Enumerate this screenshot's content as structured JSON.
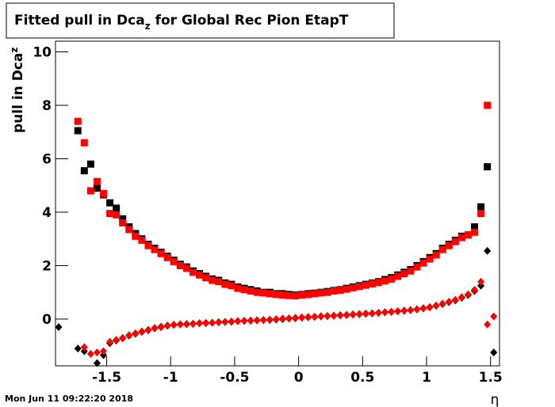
{
  "chart_data": {
    "type": "scatter",
    "title": {
      "text": "Fitted pull in Dca",
      "sub": "z",
      "rest": " for Global Rec Pion EtapT"
    },
    "y_label": {
      "text": "pull in Dca",
      "sub": "z"
    },
    "x_label": "η",
    "footer": "Mon Jun 11 09:22:20 2018",
    "xlim": [
      -1.9,
      1.57
    ],
    "ylim": [
      -1.75,
      10.4
    ],
    "xticks": [
      -1.5,
      -1,
      -0.5,
      0,
      0.5,
      1,
      1.5
    ],
    "yticks": [
      0,
      2,
      4,
      6,
      8,
      10
    ],
    "series": [
      {
        "color": "#000000",
        "marker": "square",
        "x": [
          -1.725,
          -1.675,
          -1.625,
          -1.575,
          -1.525,
          -1.475,
          -1.425,
          -1.375,
          -1.325,
          -1.275,
          -1.225,
          -1.175,
          -1.125,
          -1.075,
          -1.025,
          -0.975,
          -0.925,
          -0.875,
          -0.825,
          -0.775,
          -0.725,
          -0.675,
          -0.625,
          -0.575,
          -0.525,
          -0.475,
          -0.425,
          -0.375,
          -0.325,
          -0.275,
          -0.225,
          -0.175,
          -0.125,
          -0.075,
          -0.025,
          0.025,
          0.075,
          0.125,
          0.175,
          0.225,
          0.275,
          0.325,
          0.375,
          0.425,
          0.475,
          0.525,
          0.575,
          0.625,
          0.675,
          0.725,
          0.775,
          0.825,
          0.875,
          0.925,
          0.975,
          1.025,
          1.075,
          1.125,
          1.175,
          1.225,
          1.275,
          1.325,
          1.375,
          1.425,
          1.475
        ],
        "values": [
          7.05,
          5.55,
          5.8,
          4.9,
          4.65,
          4.35,
          4.15,
          3.75,
          3.45,
          3.2,
          3.0,
          2.8,
          2.65,
          2.5,
          2.35,
          2.2,
          2.05,
          1.95,
          1.8,
          1.7,
          1.6,
          1.5,
          1.45,
          1.35,
          1.3,
          1.2,
          1.15,
          1.1,
          1.05,
          1.0,
          1.0,
          0.95,
          0.95,
          0.92,
          0.9,
          0.92,
          0.95,
          0.97,
          1.0,
          1.03,
          1.07,
          1.1,
          1.15,
          1.2,
          1.25,
          1.3,
          1.35,
          1.4,
          1.48,
          1.55,
          1.65,
          1.75,
          1.85,
          2.0,
          2.15,
          2.3,
          2.45,
          2.65,
          2.8,
          2.95,
          3.1,
          3.15,
          3.45,
          4.2,
          5.7
        ]
      },
      {
        "color": "#ff0000",
        "marker": "square",
        "x": [
          -1.725,
          -1.675,
          -1.625,
          -1.575,
          -1.525,
          -1.475,
          -1.425,
          -1.375,
          -1.325,
          -1.275,
          -1.225,
          -1.175,
          -1.125,
          -1.075,
          -1.025,
          -0.975,
          -0.925,
          -0.875,
          -0.825,
          -0.775,
          -0.725,
          -0.675,
          -0.625,
          -0.575,
          -0.525,
          -0.475,
          -0.425,
          -0.375,
          -0.325,
          -0.275,
          -0.225,
          -0.175,
          -0.125,
          -0.075,
          -0.025,
          0.025,
          0.075,
          0.125,
          0.175,
          0.225,
          0.275,
          0.325,
          0.375,
          0.425,
          0.475,
          0.525,
          0.575,
          0.625,
          0.675,
          0.725,
          0.775,
          0.825,
          0.875,
          0.925,
          0.975,
          1.025,
          1.075,
          1.125,
          1.175,
          1.225,
          1.275,
          1.325,
          1.375,
          1.425,
          1.475
        ],
        "values": [
          7.4,
          6.6,
          4.8,
          5.15,
          4.7,
          3.95,
          3.9,
          3.6,
          3.35,
          3.1,
          2.95,
          2.75,
          2.6,
          2.45,
          2.3,
          2.15,
          2.0,
          1.9,
          1.75,
          1.65,
          1.55,
          1.45,
          1.4,
          1.3,
          1.25,
          1.15,
          1.1,
          1.05,
          1.0,
          0.98,
          0.95,
          0.92,
          0.9,
          0.88,
          0.87,
          0.9,
          0.92,
          0.95,
          0.98,
          1.0,
          1.05,
          1.08,
          1.12,
          1.17,
          1.22,
          1.27,
          1.32,
          1.37,
          1.43,
          1.5,
          1.6,
          1.7,
          1.8,
          1.95,
          2.1,
          2.25,
          2.4,
          2.6,
          2.75,
          2.9,
          3.05,
          3.15,
          3.25,
          3.95,
          8.0
        ]
      },
      {
        "color": "#000000",
        "marker": "diamond",
        "x": [
          -1.875,
          -1.725,
          -1.675,
          -1.575,
          -1.525,
          -1.475,
          -1.425,
          -1.375,
          -1.325,
          -1.275,
          -1.225,
          -1.175,
          -1.125,
          -1.075,
          -1.025,
          -0.975,
          -0.925,
          -0.875,
          -0.825,
          -0.775,
          -0.725,
          -0.675,
          -0.625,
          -0.575,
          -0.525,
          -0.475,
          -0.425,
          -0.375,
          -0.325,
          -0.275,
          -0.225,
          -0.175,
          -0.125,
          -0.075,
          -0.025,
          0.025,
          0.075,
          0.125,
          0.175,
          0.225,
          0.275,
          0.325,
          0.375,
          0.425,
          0.475,
          0.525,
          0.575,
          0.625,
          0.675,
          0.725,
          0.775,
          0.825,
          0.875,
          0.925,
          0.975,
          1.025,
          1.075,
          1.125,
          1.175,
          1.225,
          1.275,
          1.325,
          1.375,
          1.425,
          1.475,
          1.525
        ],
        "values": [
          -0.3,
          -1.1,
          -1.2,
          -1.65,
          -1.35,
          -0.9,
          -0.8,
          -0.72,
          -0.62,
          -0.55,
          -0.48,
          -0.42,
          -0.35,
          -0.3,
          -0.25,
          -0.22,
          -0.2,
          -0.19,
          -0.18,
          -0.16,
          -0.15,
          -0.14,
          -0.12,
          -0.11,
          -0.1,
          -0.08,
          -0.07,
          -0.06,
          -0.05,
          -0.04,
          -0.03,
          -0.02,
          0.0,
          0.02,
          0.03,
          0.05,
          0.07,
          0.08,
          0.1,
          0.11,
          0.12,
          0.14,
          0.15,
          0.17,
          0.18,
          0.2,
          0.21,
          0.23,
          0.25,
          0.27,
          0.29,
          0.31,
          0.33,
          0.36,
          0.4,
          0.44,
          0.5,
          0.56,
          0.63,
          0.7,
          0.8,
          0.9,
          1.05,
          1.25,
          2.55,
          -1.25
        ]
      },
      {
        "color": "#ff0000",
        "marker": "diamond",
        "x": [
          -1.675,
          -1.625,
          -1.575,
          -1.525,
          -1.475,
          -1.425,
          -1.375,
          -1.325,
          -1.275,
          -1.225,
          -1.175,
          -1.125,
          -1.075,
          -1.025,
          -0.975,
          -0.925,
          -0.875,
          -0.825,
          -0.775,
          -0.725,
          -0.675,
          -0.625,
          -0.575,
          -0.525,
          -0.475,
          -0.425,
          -0.375,
          -0.325,
          -0.275,
          -0.225,
          -0.175,
          -0.125,
          -0.075,
          -0.025,
          0.025,
          0.075,
          0.125,
          0.175,
          0.225,
          0.275,
          0.325,
          0.375,
          0.425,
          0.475,
          0.525,
          0.575,
          0.625,
          0.675,
          0.725,
          0.775,
          0.825,
          0.875,
          0.925,
          0.975,
          1.025,
          1.075,
          1.125,
          1.175,
          1.225,
          1.275,
          1.325,
          1.375,
          1.425,
          1.475,
          1.525
        ],
        "values": [
          -1.05,
          -1.3,
          -1.25,
          -1.2,
          -0.85,
          -0.78,
          -0.7,
          -0.6,
          -0.53,
          -0.46,
          -0.4,
          -0.33,
          -0.28,
          -0.24,
          -0.21,
          -0.19,
          -0.18,
          -0.17,
          -0.15,
          -0.14,
          -0.13,
          -0.11,
          -0.1,
          -0.09,
          -0.07,
          -0.06,
          -0.05,
          -0.04,
          -0.03,
          -0.02,
          0.0,
          0.02,
          0.03,
          0.05,
          0.06,
          0.08,
          0.09,
          0.11,
          0.12,
          0.13,
          0.15,
          0.16,
          0.18,
          0.19,
          0.21,
          0.22,
          0.24,
          0.26,
          0.28,
          0.3,
          0.32,
          0.34,
          0.37,
          0.41,
          0.45,
          0.51,
          0.58,
          0.65,
          0.72,
          0.82,
          0.93,
          1.1,
          1.4,
          -0.2,
          0.1
        ]
      }
    ]
  }
}
